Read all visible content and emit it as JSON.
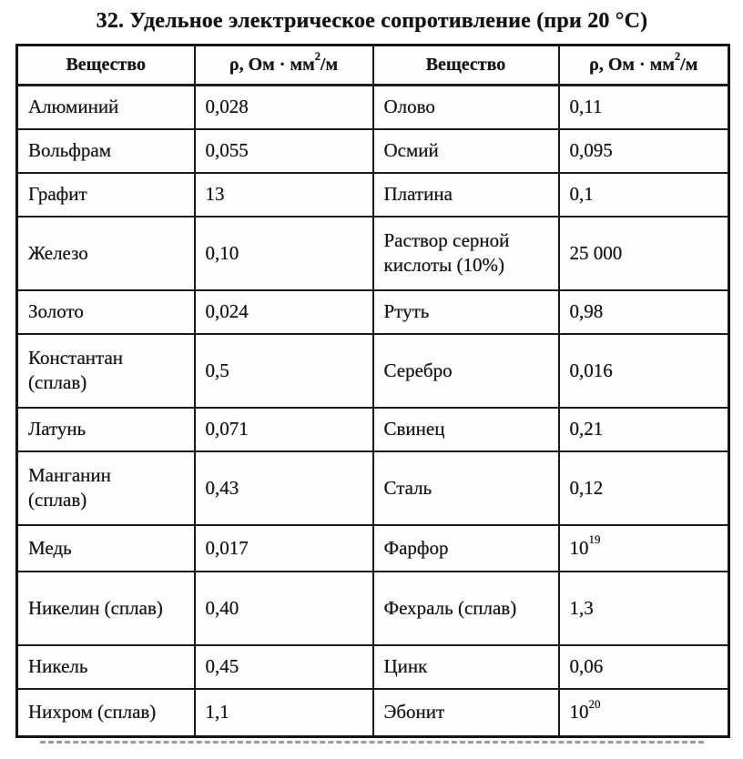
{
  "page": {
    "title": "32. Удельное электрическое сопротивление (при 20 °C)"
  },
  "table": {
    "headers": [
      "Вещество",
      "ρ, Ом · мм^2/м",
      "Вещество",
      "ρ, Ом · мм^2/м"
    ],
    "rows": [
      [
        "Алюминий",
        "0,028",
        "Олово",
        "0,11"
      ],
      [
        "Вольфрам",
        "0,055",
        "Осмий",
        "0,095"
      ],
      [
        "Графит",
        "13",
        "Платина",
        "0,1"
      ],
      [
        "Железо",
        "0,10",
        "Раствор серной кислоты (10%)",
        "25 000"
      ],
      [
        "Золото",
        "0,024",
        "Ртуть",
        "0,98"
      ],
      [
        "Константан (сплав)",
        "0,5",
        "Серебро",
        "0,016"
      ],
      [
        "Латунь",
        "0,071",
        "Свинец",
        "0,21"
      ],
      [
        "Манганин (сплав)",
        "0,43",
        "Сталь",
        "0,12"
      ],
      [
        "Медь",
        "0,017",
        "Фарфор",
        "10^19"
      ],
      [
        "Никелин (сплав)",
        "0,40",
        "Фехраль (сплав)",
        "1,3"
      ],
      [
        "Никель",
        "0,45",
        "Цинк",
        "0,06"
      ],
      [
        "Нихром (сплав)",
        "1,1",
        "Эбонит",
        "10^20"
      ]
    ]
  },
  "colors": {
    "ink": "#161616",
    "border": "#1a1a1a",
    "paper": "#ffffff"
  }
}
